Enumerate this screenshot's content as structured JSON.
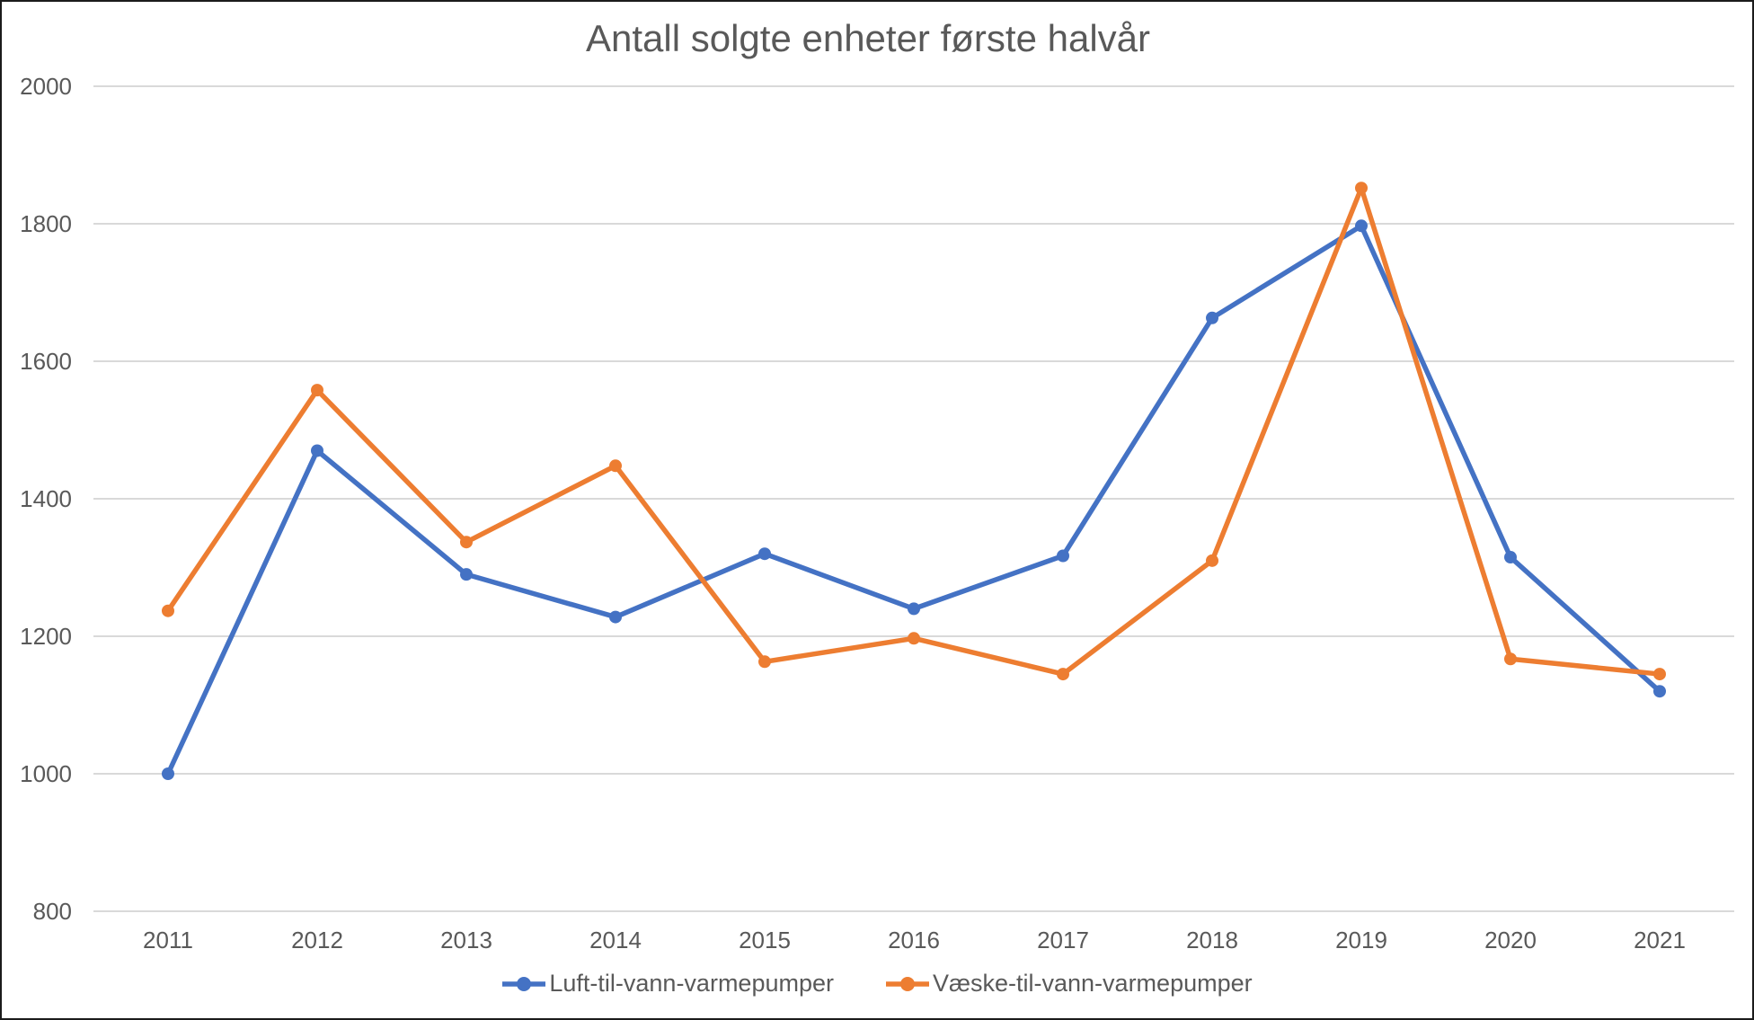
{
  "chart_data": {
    "type": "line",
    "title": "Antall solgte enheter første halvår",
    "categories": [
      "2011",
      "2012",
      "2013",
      "2014",
      "2015",
      "2016",
      "2017",
      "2018",
      "2019",
      "2020",
      "2021"
    ],
    "series": [
      {
        "name": "Luft-til-vann-varmepumper",
        "color": "#4472C4",
        "values": [
          1000,
          1470,
          1290,
          1228,
          1320,
          1240,
          1317,
          1663,
          1797,
          1315,
          1120
        ]
      },
      {
        "name": "Væske-til-vann-varmepumper",
        "color": "#ED7D31",
        "values": [
          1237,
          1558,
          1337,
          1448,
          1163,
          1197,
          1145,
          1310,
          1852,
          1167,
          1145
        ]
      }
    ],
    "xlabel": "",
    "ylabel": "",
    "ylim": [
      800,
      2000
    ],
    "ytick_step": 200,
    "yticks": [
      2000,
      1800,
      1600,
      1400,
      1200,
      1000,
      800
    ],
    "grid": "horizontal-only",
    "gridline_color": "#D9D9D9",
    "axis_text_color": "#595959",
    "background_color": "#FFFFFF",
    "legend_position": "bottom-center",
    "marker_shape": "circle"
  }
}
